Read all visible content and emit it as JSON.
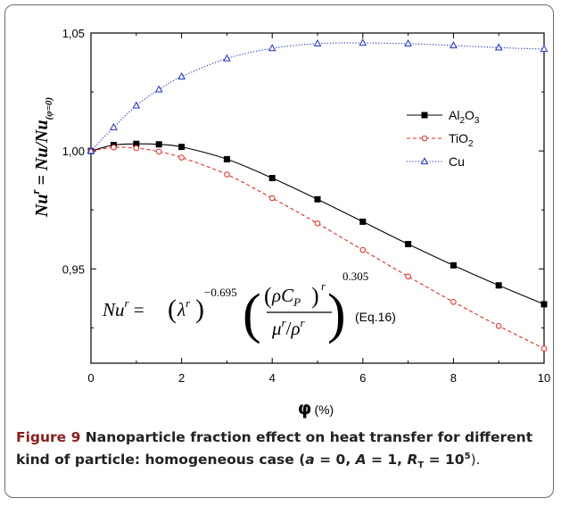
{
  "chart_data": {
    "type": "line",
    "title": "",
    "xlabel": "φ (%)",
    "xlabel_symbol": "φ",
    "xlabel_unit": "(%)",
    "ylabel": "Nu^r = Nu/Nu(φ=0)",
    "ylabel_main": "Nu",
    "ylabel_sup": "r",
    "ylabel_rest": " = Nu/Nu",
    "ylabel_sub": "(φ=0)",
    "xlim": [
      0,
      10
    ],
    "ylim": [
      0.91,
      1.05
    ],
    "xticks": [
      "0",
      "2",
      "4",
      "6",
      "8",
      "10"
    ],
    "yticks": [
      "0,95",
      "1,00",
      "1,05"
    ],
    "grid": false,
    "legend_position": "right",
    "series": [
      {
        "name": "Al2O3",
        "name_parts": [
          "Al",
          "2",
          "O",
          "3"
        ],
        "color": "#000000",
        "line_style": "solid",
        "marker": "square",
        "x": [
          0,
          0.5,
          1,
          1.5,
          2,
          3,
          4,
          5,
          6,
          7,
          8,
          9,
          10
        ],
        "y": [
          1.0,
          1.0025,
          1.003,
          1.0028,
          1.0017,
          0.9965,
          0.9885,
          0.9795,
          0.97,
          0.9605,
          0.9515,
          0.943,
          0.935
        ]
      },
      {
        "name": "TiO2",
        "name_parts": [
          "TiO",
          "2"
        ],
        "color": "#e8291c",
        "line_style": "dashed",
        "marker": "circle",
        "x": [
          0,
          0.5,
          1,
          1.5,
          2,
          3,
          4,
          5,
          6,
          7,
          8,
          9,
          10
        ],
        "y": [
          1.0,
          1.0015,
          1.0012,
          0.9997,
          0.9972,
          0.99,
          0.98,
          0.9693,
          0.958,
          0.9468,
          0.936,
          0.9258,
          0.9162
        ]
      },
      {
        "name": "Cu",
        "name_parts": [
          "Cu"
        ],
        "color": "#1a2fd0",
        "line_style": "dotted",
        "marker": "triangle",
        "x": [
          0,
          0.5,
          1,
          1.5,
          2,
          3,
          4,
          5,
          6,
          7,
          8,
          9,
          10
        ],
        "y": [
          1.0,
          1.01,
          1.0192,
          1.026,
          1.0315,
          1.0392,
          1.0435,
          1.0455,
          1.0458,
          1.0455,
          1.0447,
          1.0438,
          1.0432
        ]
      }
    ],
    "annotation": {
      "equation": "Nu^r = (λ^r)^-0.695 ((ρC_P)^r / (μ^r/ρ^r))^0.305",
      "lhs": "Nu",
      "lhs_sup": "r",
      "lambda_sup": "r",
      "exp1": "−0.695",
      "rho_cp": "ρC",
      "cp_sub": "P",
      "frac_sup": "r",
      "mu_den": "μ",
      "mu_sup": "r",
      "rho_den": "ρ",
      "rho_sup": "r",
      "exp2": "0.305",
      "eq_ref": "(Eq.16)"
    }
  },
  "caption": {
    "lead": "Figure 9",
    "body": " Nanoparticle fraction effect on heat transfer for different kind of particle: homogeneous case (",
    "a_sym": "a",
    "a_val": " = 0, ",
    "A_sym": "A",
    "A_val": " = 1, ",
    "R_sym": "R",
    "R_sub": "T",
    "R_val": " = 10",
    "R_exp": "5",
    "trail": ")."
  }
}
